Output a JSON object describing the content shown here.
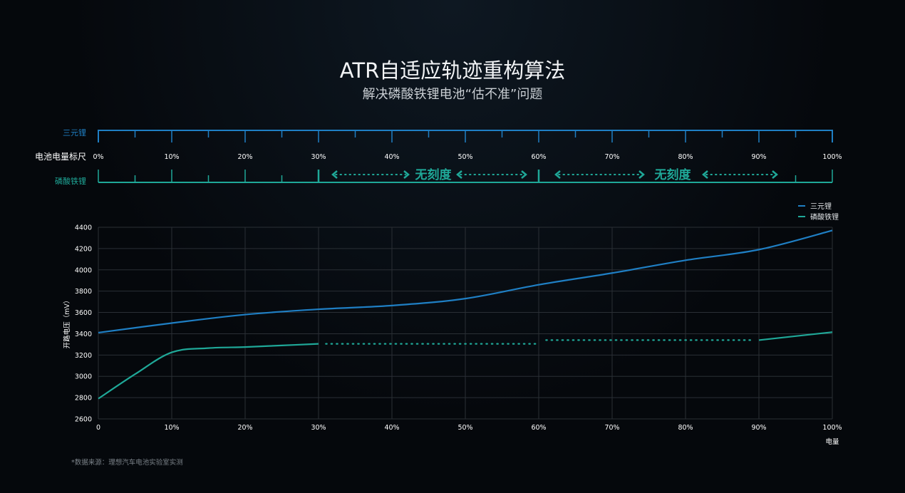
{
  "title": "ATR自适应轨迹重构算法",
  "subtitle": "解决磷酸铁锂电池“估不准”问题",
  "ruler": {
    "label": "电池电量标尺",
    "top_label": "三元锂",
    "bottom_label": "磷酸铁锂",
    "ticks": [
      "0%",
      "10%",
      "20%",
      "30%",
      "40%",
      "50%",
      "60%",
      "70%",
      "80%",
      "90%",
      "100%"
    ],
    "no_scale_label": "无刻度",
    "lfp_marked_ticks": [
      0,
      5,
      10,
      15,
      20,
      25,
      30,
      60,
      95,
      100
    ]
  },
  "footnote": "*数据来源：理想汽车电池实验室实测",
  "colors": {
    "ncm": "#1f7fc4",
    "lfp": "#1fa898"
  },
  "chart_data": {
    "type": "line",
    "xlabel": "电量",
    "ylabel": "开路电压（mV）",
    "x_tick_labels": [
      "0",
      "10%",
      "20%",
      "30%",
      "40%",
      "50%",
      "60%",
      "70%",
      "80%",
      "90%",
      "100%"
    ],
    "y_ticks": [
      2600,
      2800,
      3000,
      3200,
      3400,
      3600,
      3800,
      4000,
      4200,
      4400
    ],
    "xlim": [
      0,
      100
    ],
    "ylim": [
      2600,
      4400
    ],
    "grid": true,
    "legend": "top-right",
    "series": [
      {
        "name": "三元锂",
        "x": [
          0,
          10,
          20,
          30,
          40,
          50,
          60,
          70,
          80,
          90,
          100
        ],
        "y": [
          3410,
          3500,
          3580,
          3630,
          3665,
          3730,
          3860,
          3970,
          4090,
          4190,
          4370
        ]
      },
      {
        "name": "磷酸铁锂",
        "x": [
          0,
          5,
          10,
          15,
          20,
          25,
          30
        ],
        "y": [
          2790,
          3020,
          3225,
          3265,
          3275,
          3290,
          3305
        ]
      },
      {
        "name": "",
        "style": "dotted",
        "x": [
          31,
          60
        ],
        "y": [
          3305,
          3305
        ]
      },
      {
        "name": "",
        "style": "dotted",
        "x": [
          61,
          89
        ],
        "y": [
          3340,
          3340
        ]
      },
      {
        "name": "",
        "x": [
          90,
          100
        ],
        "y": [
          3340,
          3415
        ]
      }
    ]
  }
}
